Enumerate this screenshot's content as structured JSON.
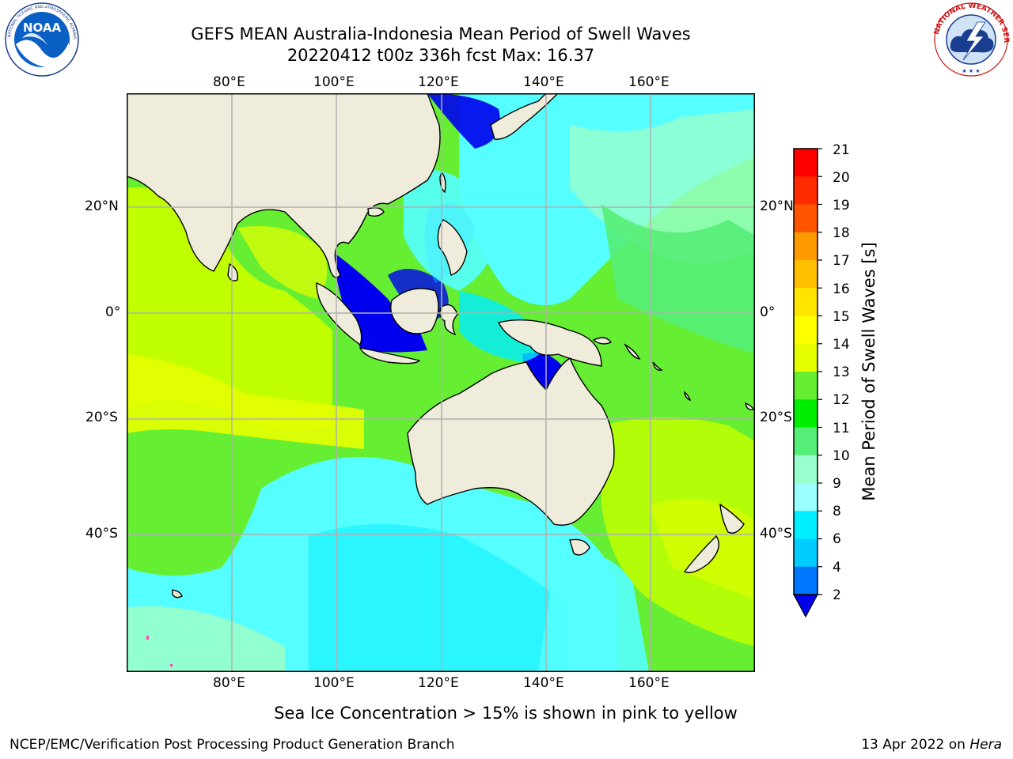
{
  "header": {
    "title_line1": "GEFS MEAN Australia-Indonesia Mean Period of Swell Waves",
    "title_line2": "20220412 t00z 336h fcst   Max: 16.37"
  },
  "logos": {
    "noaa": {
      "text": "NOAA",
      "ring_text": "NATIONAL OCEANIC AND ATMOSPHERIC ADMINISTRATION · U.S. DEPARTMENT OF COMMERCE"
    },
    "nws": {
      "ring_text": "NATIONAL WEATHER SERVICE"
    }
  },
  "map": {
    "lon_ticks": [
      "80°E",
      "100°E",
      "120°E",
      "140°E",
      "160°E"
    ],
    "lat_ticks": [
      "20°N",
      "0°",
      "20°S",
      "40°S"
    ],
    "colors": {
      "land": "#efecdc",
      "grid": "#b0b0b0",
      "frame": "#000000"
    }
  },
  "colorbar": {
    "title": "Mean Period of Swell Waves [s]",
    "labels": [
      "21",
      "20",
      "19",
      "18",
      "17",
      "16",
      "15",
      "14",
      "13",
      "12",
      "11",
      "10",
      "9",
      "8",
      "6",
      "4",
      "2"
    ],
    "colors": [
      "#ff0000",
      "#ff2a00",
      "#ff5500",
      "#ff7f00",
      "#ff9900",
      "#ffbf00",
      "#ffe500",
      "#ffff00",
      "#e5ff00",
      "#bfff00",
      "#66ee33",
      "#00ee00",
      "#55ee77",
      "#99ffcc",
      "#99ffff",
      "#55ffff",
      "#00eeff",
      "#00ccff",
      "#0077ff",
      "#0000ee"
    ]
  },
  "note": "Sea Ice Concentration > 15% is shown in pink to yellow",
  "footer": {
    "left": "NCEP/EMC/Verification Post Processing Product Generation Branch",
    "date": "13 Apr 2022 on ",
    "host": "Hera"
  }
}
